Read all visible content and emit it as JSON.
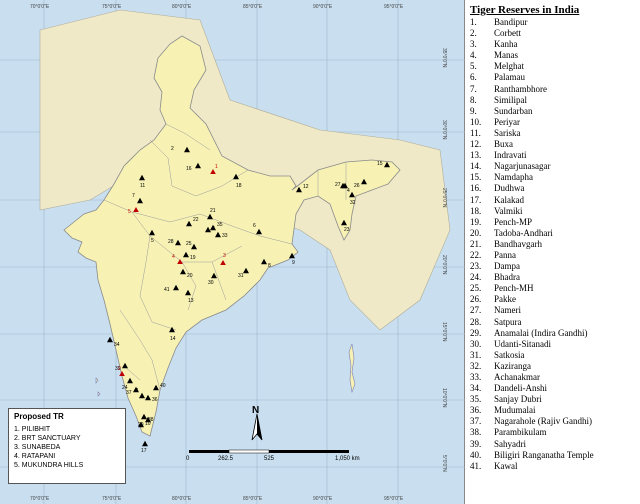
{
  "panel": {
    "title": "Tiger Reserves in India",
    "reserves": [
      {
        "num": "1.",
        "name": "Bandipur"
      },
      {
        "num": "2.",
        "name": "Corbett"
      },
      {
        "num": "3.",
        "name": "Kanha"
      },
      {
        "num": "4.",
        "name": "Manas"
      },
      {
        "num": "5.",
        "name": "Melghat"
      },
      {
        "num": "6.",
        "name": "Palamau"
      },
      {
        "num": "7.",
        "name": "Ranthambhore"
      },
      {
        "num": "8.",
        "name": "Similipal"
      },
      {
        "num": "9.",
        "name": "Sundarban"
      },
      {
        "num": "10.",
        "name": "Periyar"
      },
      {
        "num": "11.",
        "name": "Sariska"
      },
      {
        "num": "12.",
        "name": "Buxa"
      },
      {
        "num": "13.",
        "name": "Indravati"
      },
      {
        "num": "14.",
        "name": "Nagarjunasagar"
      },
      {
        "num": "15.",
        "name": "Namdapha"
      },
      {
        "num": "16.",
        "name": "Dudhwa"
      },
      {
        "num": "17.",
        "name": "Kalakad"
      },
      {
        "num": "18.",
        "name": "Valmiki"
      },
      {
        "num": "19.",
        "name": "Pench-MP"
      },
      {
        "num": "20.",
        "name": "Tadoba-Andhari"
      },
      {
        "num": "21.",
        "name": "Bandhavgarh"
      },
      {
        "num": "22.",
        "name": "Panna"
      },
      {
        "num": "23.",
        "name": "Dampa"
      },
      {
        "num": "24.",
        "name": "Bhadra"
      },
      {
        "num": "25.",
        "name": "Pench-MH"
      },
      {
        "num": "26.",
        "name": "Pakke"
      },
      {
        "num": "27.",
        "name": "Nameri"
      },
      {
        "num": "28.",
        "name": "Satpura"
      },
      {
        "num": "29.",
        "name": "Anamalai (Indira Gandhi)"
      },
      {
        "num": "30.",
        "name": "Udanti-Sitanadi"
      },
      {
        "num": "31.",
        "name": "Satkosia"
      },
      {
        "num": "32.",
        "name": "Kaziranga"
      },
      {
        "num": "33.",
        "name": "Achanakmar"
      },
      {
        "num": "34.",
        "name": "Dandeli-Anshi"
      },
      {
        "num": "35.",
        "name": "Sanjay Dubri"
      },
      {
        "num": "36.",
        "name": "Mudumalai"
      },
      {
        "num": "37.",
        "name": "Nagarahole (Rajiv Gandhi)"
      },
      {
        "num": "38.",
        "name": "Parambikulam"
      },
      {
        "num": "39.",
        "name": "Sahyadri"
      },
      {
        "num": "40.",
        "name": "Biligiri Ranganatha Temple"
      },
      {
        "num": "41.",
        "name": "Kawal"
      }
    ]
  },
  "legend": {
    "title": "Proposed TR",
    "items": [
      "1. PILIBHIT",
      "2. BRT SANCTUARY",
      "3. SUNABEDA",
      "4. RATAPANI",
      "5. MUKUNDRA HILLS"
    ]
  },
  "north_label": "N",
  "scale_bar": {
    "labels": [
      "0",
      "262.5",
      "525",
      "1,050 km"
    ],
    "values_km": [
      0,
      262.5,
      525,
      1050
    ]
  },
  "graticule": {
    "longitudes": [
      "70°0'0\"E",
      "75°0'0\"E",
      "80°0'0\"E",
      "85°0'0\"E",
      "90°0'0\"E",
      "95°0'0\"E"
    ],
    "latitudes": [
      "35°0'0\"N",
      "30°0'0\"N",
      "25°0'0\"N",
      "20°0'0\"N",
      "15°0'0\"N",
      "10°0'0\"N",
      "5°0'0\"N"
    ]
  },
  "markers": {
    "existing_labels": [
      "1",
      "2",
      "3",
      "4",
      "5",
      "6",
      "7",
      "8",
      "9",
      "10",
      "11",
      "12",
      "13",
      "14",
      "15",
      "16",
      "17",
      "18",
      "19",
      "20",
      "21",
      "22",
      "23",
      "24",
      "25",
      "26",
      "27",
      "28",
      "29",
      "30",
      "31",
      "32",
      "33",
      "34",
      "35",
      "36",
      "37",
      "38",
      "39",
      "40",
      "41"
    ],
    "proposed_labels": [
      "1",
      "2",
      "3",
      "4",
      "5"
    ]
  },
  "colors": {
    "land": "#f7f2b4",
    "sea": "#c9dff0",
    "border": "#8a8a8a",
    "existing_marker": "#000000",
    "proposed_marker": "#c00000"
  }
}
